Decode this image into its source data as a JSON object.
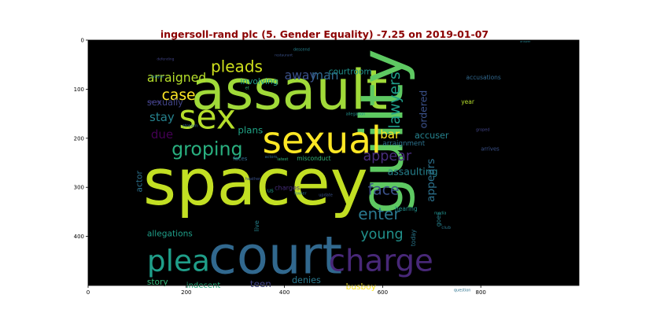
{
  "chart_data": {
    "type": "wordcloud",
    "title": "ingersoll-rand plc (5. Gender Equality) -7.25 on 2019-01-07",
    "xlim": [
      0,
      1000
    ],
    "ylim": [
      500,
      0
    ],
    "x_ticks": [
      0,
      200,
      400,
      600,
      800
    ],
    "y_ticks": [
      0,
      100,
      200,
      300,
      400
    ],
    "background": "#000000",
    "words": [
      {
        "text": "assault",
        "x": 210,
        "y": 140,
        "size": 112,
        "color": "#a0da39",
        "rot": 0
      },
      {
        "text": "spacey",
        "x": 112,
        "y": 335,
        "size": 130,
        "color": "#c2df23",
        "rot": 0
      },
      {
        "text": "guilty",
        "x": 640,
        "y": 355,
        "size": 120,
        "color": "#5ec962",
        "rot": 90
      },
      {
        "text": "sexual",
        "x": 355,
        "y": 230,
        "size": 75,
        "color": "#fde725",
        "rot": 0
      },
      {
        "text": "sex",
        "x": 185,
        "y": 180,
        "size": 68,
        "color": "#b5de2b",
        "rot": 0
      },
      {
        "text": "court",
        "x": 245,
        "y": 475,
        "size": 105,
        "color": "#31688e",
        "rot": 0
      },
      {
        "text": "charge",
        "x": 490,
        "y": 470,
        "size": 62,
        "color": "#482878",
        "rot": 0
      },
      {
        "text": "plea",
        "x": 120,
        "y": 470,
        "size": 60,
        "color": "#1f9e89",
        "rot": 0
      },
      {
        "text": "groping",
        "x": 170,
        "y": 235,
        "size": 38,
        "color": "#29af7f",
        "rot": 0
      },
      {
        "text": "pleads",
        "x": 250,
        "y": 65,
        "size": 32,
        "color": "#d0e11c",
        "rot": 0
      },
      {
        "text": "case",
        "x": 150,
        "y": 122,
        "size": 30,
        "color": "#fde725",
        "rot": 0
      },
      {
        "text": "arraigned",
        "x": 120,
        "y": 85,
        "size": 25,
        "color": "#b5de2b",
        "rot": 0
      },
      {
        "text": "stay",
        "x": 125,
        "y": 165,
        "size": 24,
        "color": "#26828e",
        "rot": 0
      },
      {
        "text": "due",
        "x": 128,
        "y": 200,
        "size": 24,
        "color": "#440154",
        "rot": 0
      },
      {
        "text": "sexually",
        "x": 120,
        "y": 133,
        "size": 18,
        "color": "#414487",
        "rot": 0
      },
      {
        "text": "away",
        "x": 400,
        "y": 80,
        "size": 25,
        "color": "#3b528b",
        "rot": 0
      },
      {
        "text": "man",
        "x": 455,
        "y": 80,
        "size": 25,
        "color": "#31688e",
        "rot": 0
      },
      {
        "text": "involving",
        "x": 310,
        "y": 90,
        "size": 17,
        "color": "#1f9e89",
        "rot": 0
      },
      {
        "text": "plans",
        "x": 305,
        "y": 190,
        "size": 19,
        "color": "#20a486",
        "rot": 0
      },
      {
        "text": "courtroom",
        "x": 490,
        "y": 70,
        "size": 17,
        "color": "#21918c",
        "rot": 0
      },
      {
        "text": "lawyers",
        "x": 635,
        "y": 180,
        "size": 30,
        "color": "#1f9e89",
        "rot": 90
      },
      {
        "text": "ordered",
        "x": 690,
        "y": 180,
        "size": 20,
        "color": "#3b528b",
        "rot": 90
      },
      {
        "text": "accusations",
        "x": 770,
        "y": 80,
        "size": 12,
        "color": "#31688e",
        "rot": 0
      },
      {
        "text": "bar",
        "x": 595,
        "y": 200,
        "size": 24,
        "color": "#fde725",
        "rot": 0
      },
      {
        "text": "accuser",
        "x": 665,
        "y": 200,
        "size": 18,
        "color": "#26828e",
        "rot": 0
      },
      {
        "text": "arraignment",
        "x": 600,
        "y": 215,
        "size": 14,
        "color": "#2c728e",
        "rot": 0
      },
      {
        "text": "arrives",
        "x": 800,
        "y": 225,
        "size": 11,
        "color": "#3b528b",
        "rot": 0
      },
      {
        "text": "appear",
        "x": 560,
        "y": 245,
        "size": 28,
        "color": "#472d7b",
        "rot": 0
      },
      {
        "text": "assaulting",
        "x": 610,
        "y": 275,
        "size": 20,
        "color": "#26828e",
        "rot": 0
      },
      {
        "text": "appears",
        "x": 705,
        "y": 330,
        "size": 22,
        "color": "#2c728e",
        "rot": 90
      },
      {
        "text": "face",
        "x": 570,
        "y": 315,
        "size": 30,
        "color": "#3b528b",
        "rot": 0
      },
      {
        "text": "enter",
        "x": 550,
        "y": 365,
        "size": 32,
        "color": "#2a788e",
        "rot": 0
      },
      {
        "text": "young",
        "x": 555,
        "y": 405,
        "size": 28,
        "color": "#21918c",
        "rot": 0
      },
      {
        "text": "actor",
        "x": 110,
        "y": 310,
        "size": 17,
        "color": "#2c728e",
        "rot": 90
      },
      {
        "text": "allegations",
        "x": 120,
        "y": 400,
        "size": 17,
        "color": "#1f9e89",
        "rot": 0
      },
      {
        "text": "story",
        "x": 120,
        "y": 498,
        "size": 17,
        "color": "#35b779",
        "rot": 0
      },
      {
        "text": "indecent",
        "x": 200,
        "y": 505,
        "size": 16,
        "color": "#29af7f",
        "rot": 0
      },
      {
        "text": "teen",
        "x": 330,
        "y": 503,
        "size": 19,
        "color": "#414487",
        "rot": 0
      },
      {
        "text": "denies",
        "x": 415,
        "y": 495,
        "size": 18,
        "color": "#2a788e",
        "rot": 0
      },
      {
        "text": "busboy",
        "x": 525,
        "y": 508,
        "size": 17,
        "color": "#fde725",
        "rot": 0
      },
      {
        "text": "charges",
        "x": 380,
        "y": 305,
        "size": 13,
        "color": "#472d7b",
        "rot": 0
      },
      {
        "text": "live",
        "x": 348,
        "y": 390,
        "size": 13,
        "color": "#26828e",
        "rot": 90
      },
      {
        "text": "hearing",
        "x": 625,
        "y": 348,
        "size": 12,
        "color": "#21918c",
        "rot": 0
      },
      {
        "text": "today",
        "x": 667,
        "y": 420,
        "size": 12,
        "color": "#2a788e",
        "rot": 90
      },
      {
        "text": "goes",
        "x": 718,
        "y": 380,
        "size": 12,
        "color": "#26828e",
        "rot": 90
      },
      {
        "text": "club",
        "x": 720,
        "y": 385,
        "size": 9,
        "color": "#2a788e",
        "rot": 0
      },
      {
        "text": "media",
        "x": 705,
        "y": 355,
        "size": 8,
        "color": "#21918c",
        "rot": 0
      },
      {
        "text": "year",
        "x": 760,
        "y": 130,
        "size": 12,
        "color": "#b5de2b",
        "rot": 0
      },
      {
        "text": "groped",
        "x": 790,
        "y": 185,
        "size": 8,
        "color": "#414487",
        "rot": 0
      },
      {
        "text": "allegation",
        "x": 525,
        "y": 153,
        "size": 8,
        "color": "#21918c",
        "rot": 0
      },
      {
        "text": "misconduct",
        "x": 425,
        "y": 245,
        "size": 12,
        "color": "#35b779",
        "rot": 0
      },
      {
        "text": "latest",
        "x": 385,
        "y": 245,
        "size": 8,
        "color": "#35b779",
        "rot": 0
      },
      {
        "text": "faces",
        "x": 295,
        "y": 245,
        "size": 11,
        "color": "#31688e",
        "rot": 0
      },
      {
        "text": "actors",
        "x": 360,
        "y": 240,
        "size": 8,
        "color": "#31688e",
        "rot": 0
      },
      {
        "text": "us",
        "x": 365,
        "y": 310,
        "size": 11,
        "color": "#1f9e89",
        "rot": 0
      },
      {
        "text": "heather",
        "x": 320,
        "y": 285,
        "size": 8,
        "color": "#3b528b",
        "rot": 0
      },
      {
        "text": "fowler",
        "x": 420,
        "y": 315,
        "size": 8,
        "color": "#2c728e",
        "rot": 0
      },
      {
        "text": "update",
        "x": 470,
        "y": 318,
        "size": 8,
        "color": "#3b528b",
        "rot": 0
      },
      {
        "text": "stream",
        "x": 192,
        "y": 177,
        "size": 9,
        "color": "#31688e",
        "rot": 0
      },
      {
        "text": "secret",
        "x": 122,
        "y": 128,
        "size": 9,
        "color": "#443983",
        "rot": 0
      },
      {
        "text": "lawyer",
        "x": 128,
        "y": 77,
        "size": 8,
        "color": "#26828e",
        "rot": 0
      },
      {
        "text": "defending",
        "x": 140,
        "y": 41,
        "size": 7,
        "color": "#414487",
        "rot": 0
      },
      {
        "text": "descend",
        "x": 418,
        "y": 22,
        "size": 8,
        "color": "#26828e",
        "rot": 0
      },
      {
        "text": "restaurant",
        "x": 380,
        "y": 33,
        "size": 7,
        "color": "#3b528b",
        "rot": 0
      },
      {
        "text": "et",
        "x": 320,
        "y": 100,
        "size": 8,
        "color": "#35b779",
        "rot": 0
      },
      {
        "text": "answer",
        "x": 880,
        "y": 5,
        "size": 6,
        "color": "#26828e",
        "rot": 0
      },
      {
        "text": "question",
        "x": 745,
        "y": 512,
        "size": 8,
        "color": "#2c728e",
        "rot": 0
      }
    ]
  }
}
